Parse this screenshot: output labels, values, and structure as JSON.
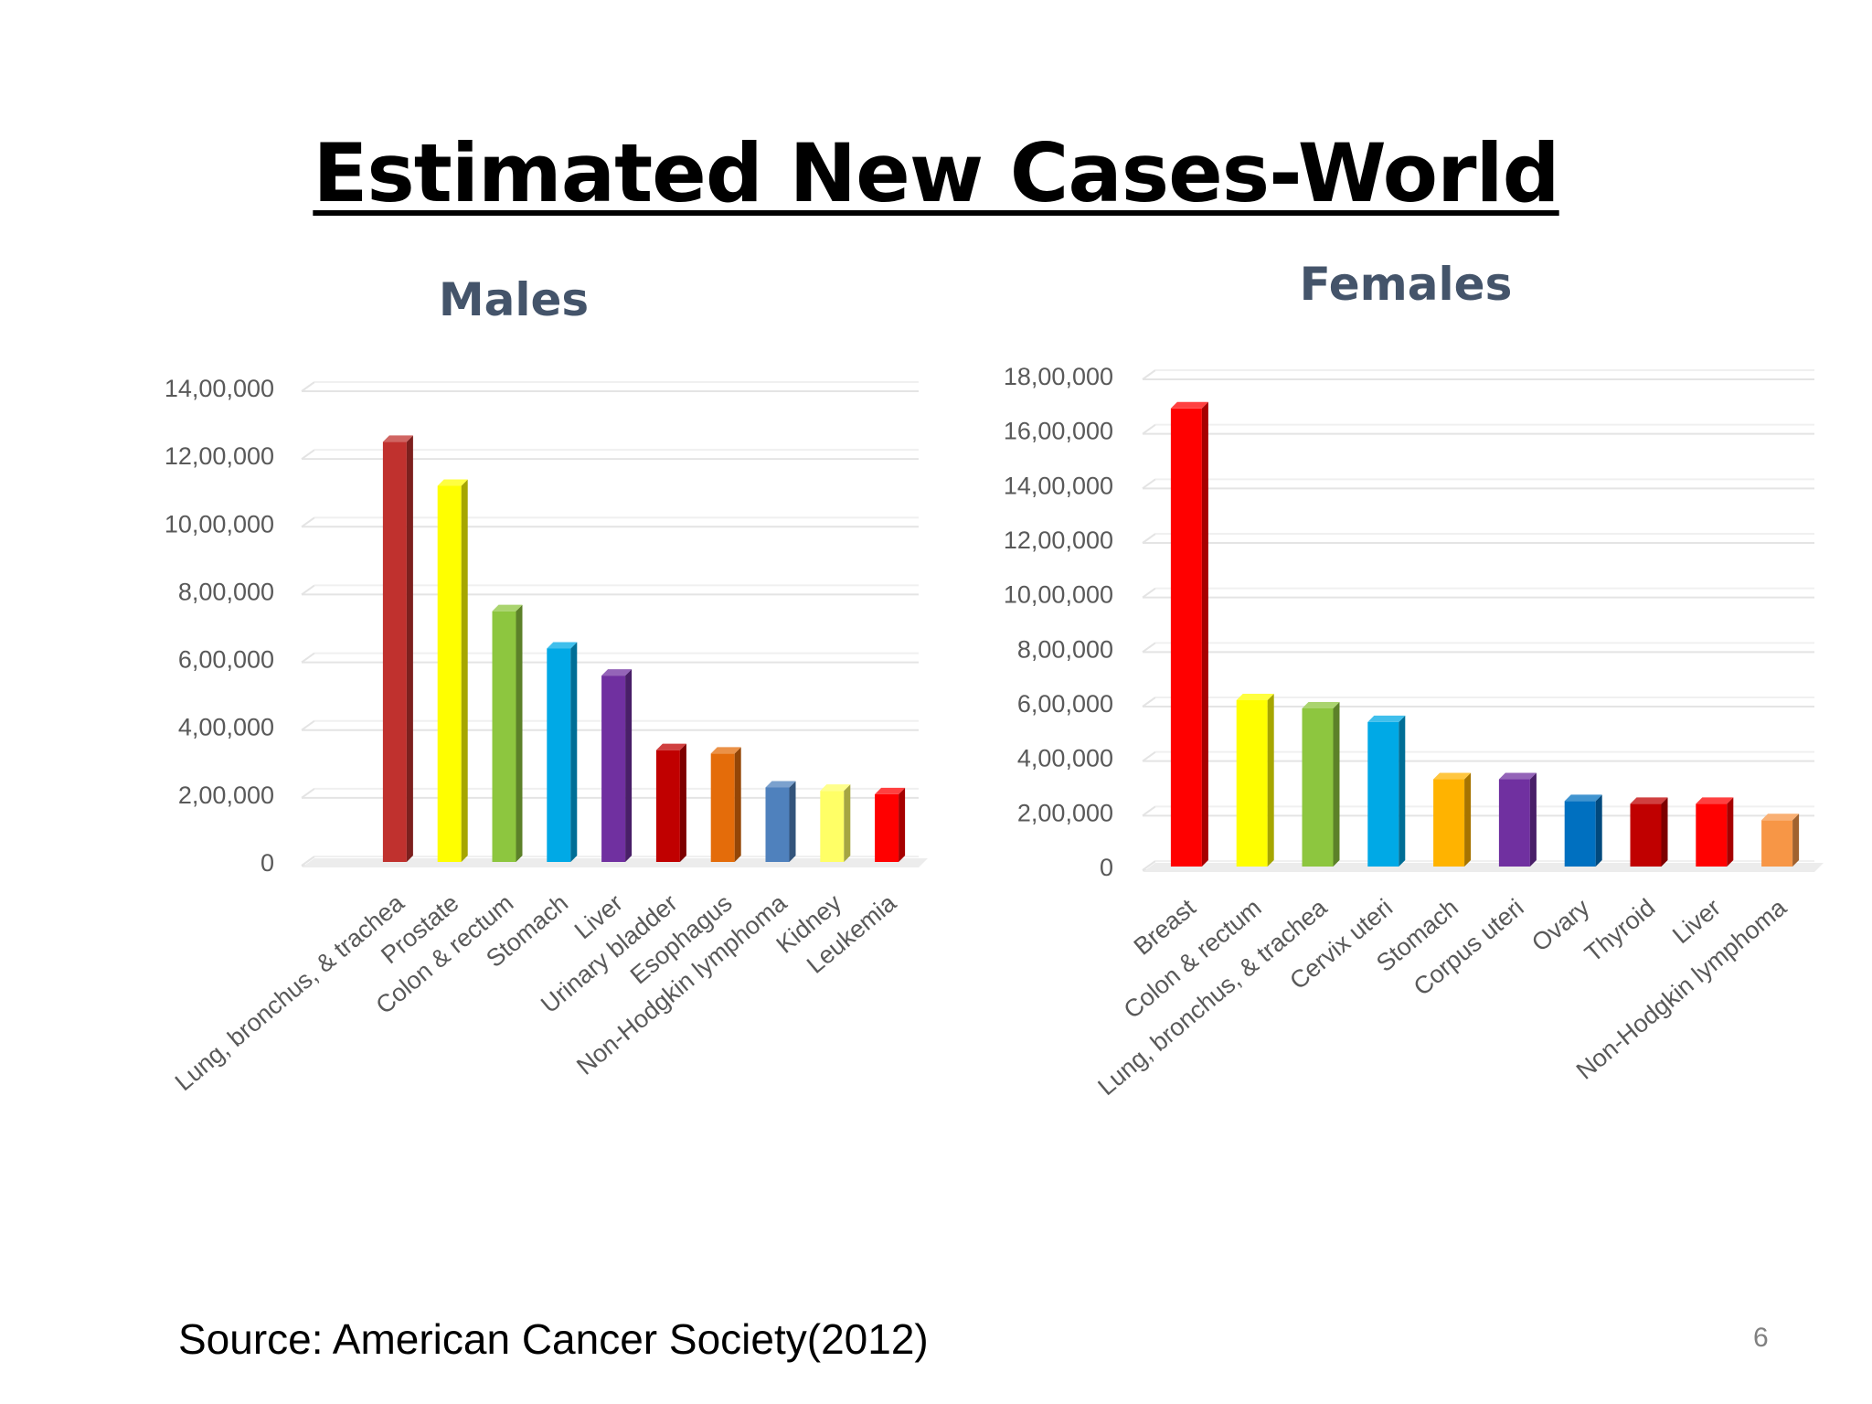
{
  "title": "Estimated New Cases-World",
  "source": "Source: American Cancer Society(2012)",
  "page_number": "6",
  "chart_data": [
    {
      "type": "bar",
      "title": "Males",
      "xlabel": "",
      "ylabel": "",
      "ylim": [
        0,
        1400000
      ],
      "yticks": [
        "0",
        "2,00,000",
        "4,00,000",
        "6,00,000",
        "8,00,000",
        "10,00,000",
        "12,00,000",
        "14,00,000"
      ],
      "grid": true,
      "legend": "none",
      "categories": [
        "Lung, bronchus, & trachea",
        "Prostate",
        "Colon & rectum",
        "Stomach",
        "Liver",
        "Urinary bladder",
        "Esophagus",
        "Non-Hodgkin lymphoma",
        "Kidney",
        "Leukemia"
      ],
      "values": [
        1240000,
        1110000,
        740000,
        630000,
        550000,
        330000,
        320000,
        220000,
        210000,
        200000
      ],
      "colors": [
        "#C0312E",
        "#FFFF00",
        "#8DC63F",
        "#00A9E6",
        "#7030A0",
        "#C00000",
        "#E46C0A",
        "#4F81BD",
        "#FFFF66",
        "#FF0000"
      ]
    },
    {
      "type": "bar",
      "title": "Females",
      "xlabel": "",
      "ylabel": "",
      "ylim": [
        0,
        1800000
      ],
      "yticks": [
        "0",
        "2,00,000",
        "4,00,000",
        "6,00,000",
        "8,00,000",
        "10,00,000",
        "12,00,000",
        "14,00,000",
        "16,00,000",
        "18,00,000"
      ],
      "grid": true,
      "legend": "none",
      "categories": [
        "Breast",
        "Colon & rectum",
        "Lung, bronchus, & trachea",
        "Cervix uteri",
        "Stomach",
        "Corpus uteri",
        "Ovary",
        "Thyroid",
        "Liver",
        "Non-Hodgkin lymphoma"
      ],
      "values": [
        1680000,
        610000,
        580000,
        530000,
        320000,
        320000,
        240000,
        230000,
        230000,
        170000
      ],
      "colors": [
        "#FF0000",
        "#FFFF00",
        "#8DC63F",
        "#00A9E6",
        "#FFB300",
        "#7030A0",
        "#0070C0",
        "#C00000",
        "#FF0000",
        "#F79646"
      ]
    }
  ]
}
